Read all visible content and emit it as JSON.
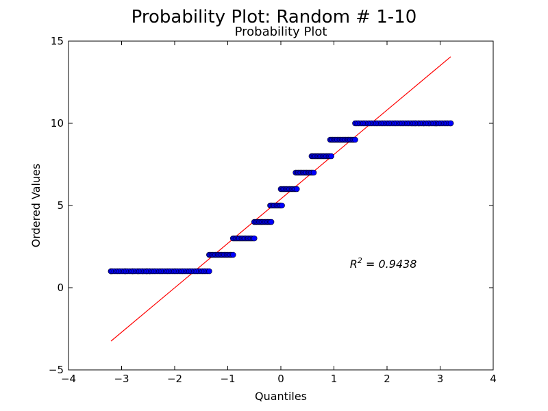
{
  "chart_data": {
    "type": "scatter",
    "title": "Probability Plot: Random # 1-10",
    "subtitle": "Probability Plot",
    "xlabel": "Quantiles",
    "ylabel": "Ordered Values",
    "xlim": [
      -4,
      4
    ],
    "ylim": [
      -5,
      15
    ],
    "xticks": [
      -4,
      -3,
      -2,
      -1,
      0,
      1,
      2,
      3,
      4
    ],
    "xtick_labels": [
      "−4",
      "−3",
      "−2",
      "−1",
      "0",
      "1",
      "2",
      "3",
      "4"
    ],
    "yticks": [
      -5,
      0,
      5,
      10,
      15
    ],
    "ytick_labels": [
      "−5",
      "0",
      "5",
      "10",
      "15"
    ],
    "grid": false,
    "annotation": {
      "text": "R² = 0.9438",
      "base": "R",
      "sup": "2",
      "rest": " = 0.9438",
      "x": 1.3,
      "y": 1.2
    },
    "fit_line": {
      "x": [
        -3.2,
        3.2
      ],
      "y": [
        -3.25,
        14.05
      ],
      "color": "#ff0000"
    },
    "marker_color": "#0000ff",
    "marker_edge_color": "#000000",
    "series": [
      {
        "value": 1,
        "x_min": -3.2,
        "x_max": -1.35,
        "n": 60,
        "outliers": [
          -3.2,
          -2.93,
          -2.79,
          -2.69,
          -2.6,
          -2.53,
          -2.47
        ]
      },
      {
        "value": 2,
        "x_min": -1.35,
        "x_max": -0.9,
        "n": 20,
        "outliers": []
      },
      {
        "value": 3,
        "x_min": -0.9,
        "x_max": -0.5,
        "n": 18,
        "outliers": []
      },
      {
        "value": 4,
        "x_min": -0.5,
        "x_max": -0.18,
        "n": 15,
        "outliers": []
      },
      {
        "value": 5,
        "x_min": -0.2,
        "x_max": 0.02,
        "n": 10,
        "outliers": []
      },
      {
        "value": 6,
        "x_min": 0.0,
        "x_max": 0.3,
        "n": 14,
        "outliers": []
      },
      {
        "value": 7,
        "x_min": 0.28,
        "x_max": 0.62,
        "n": 16,
        "outliers": []
      },
      {
        "value": 8,
        "x_min": 0.58,
        "x_max": 0.95,
        "n": 17,
        "outliers": []
      },
      {
        "value": 9,
        "x_min": 0.93,
        "x_max": 1.4,
        "n": 22,
        "outliers": []
      },
      {
        "value": 10,
        "x_min": 1.4,
        "x_max": 3.2,
        "n": 60,
        "outliers": [
          2.47,
          2.53,
          2.6,
          2.69,
          2.79,
          2.93,
          3.2
        ]
      }
    ]
  }
}
